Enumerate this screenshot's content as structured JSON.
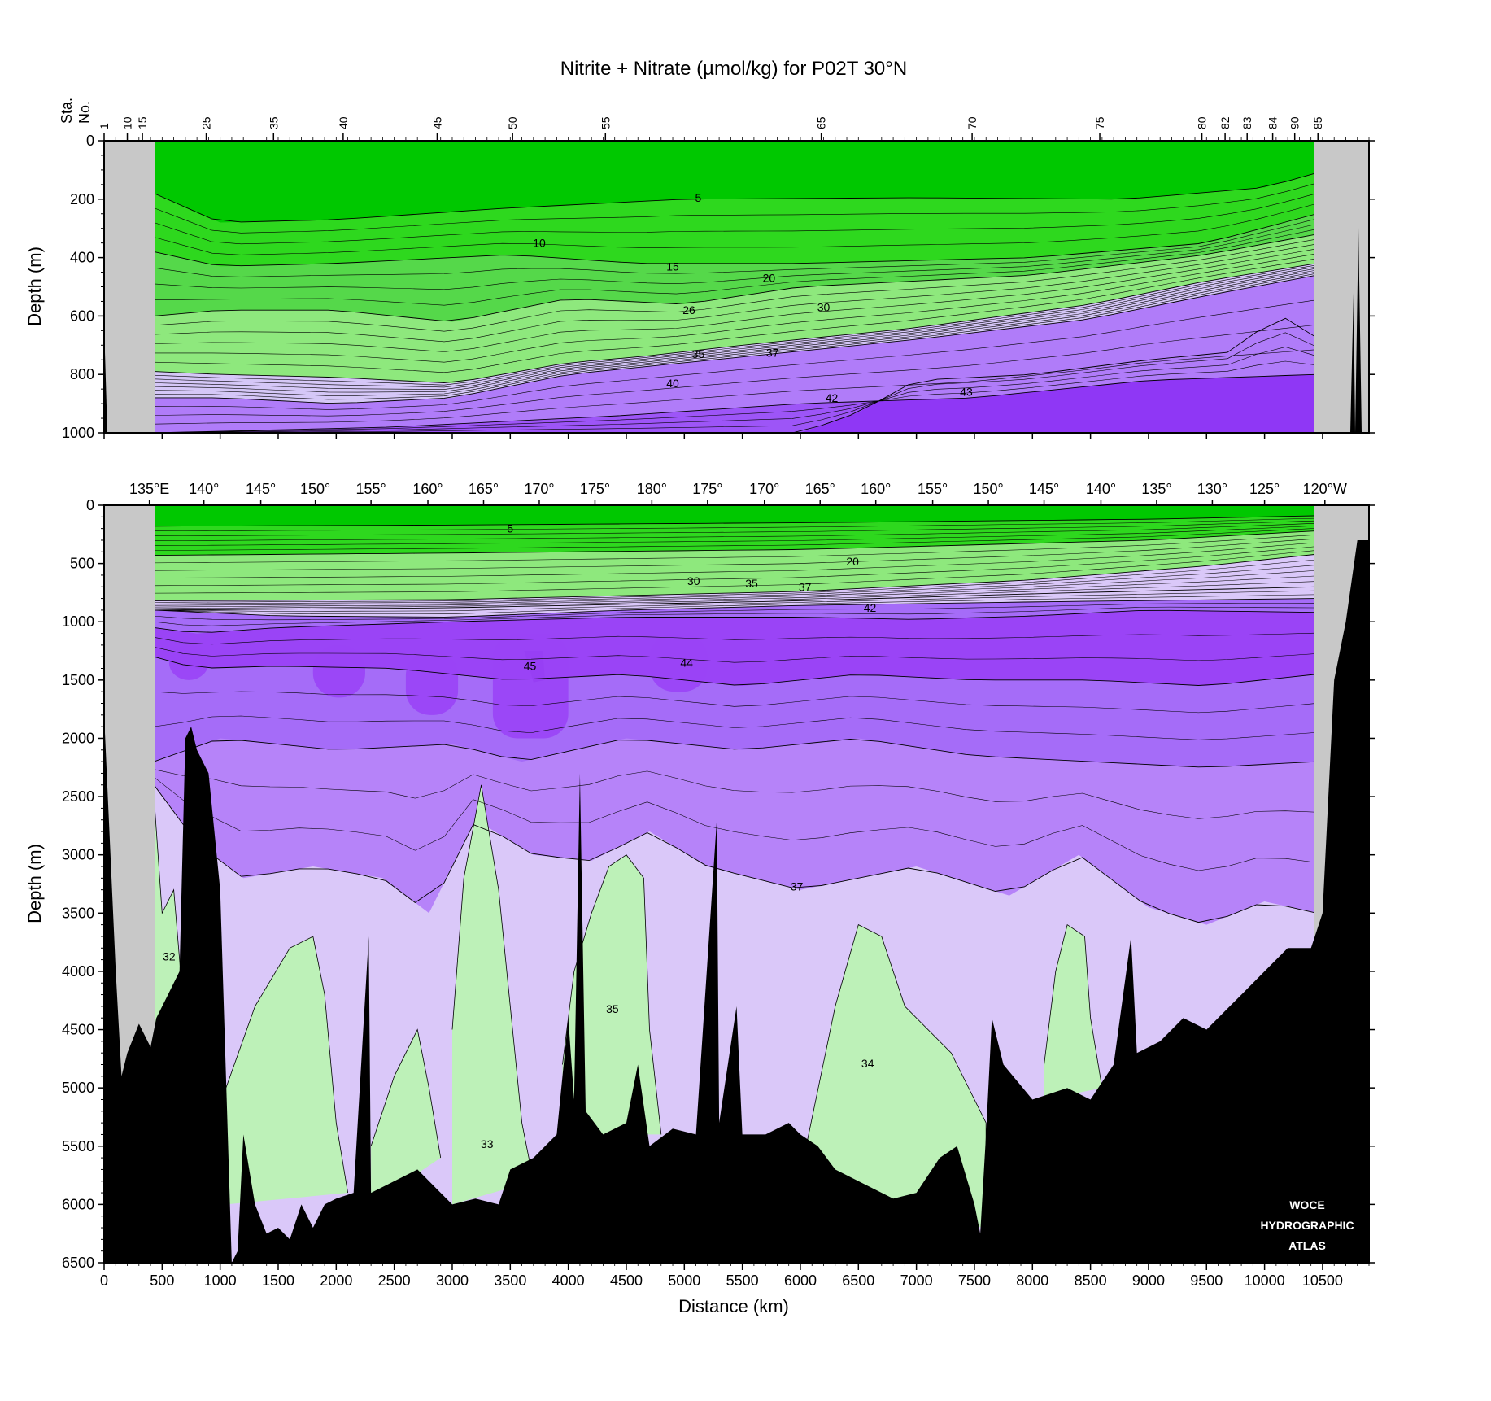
{
  "chart_data": [
    {
      "type": "contour",
      "panel": "upper",
      "title": "Nitrite + Nitrate (µmol/kg) for P02T 30°N",
      "ylabel": "Depth (m)",
      "station_axis_label": [
        "Sta.",
        "No."
      ],
      "ylim": [
        0,
        1000
      ],
      "y_inverted": true,
      "xlim": [
        0,
        10900
      ],
      "yticks": [
        0,
        200,
        400,
        600,
        800,
        1000
      ],
      "ytick_labels": [
        "0",
        "200",
        "400",
        "600",
        "800",
        "1000"
      ],
      "stations": [
        {
          "label": "1",
          "x": 0
        },
        {
          "label": "10",
          "x": 200
        },
        {
          "label": "15",
          "x": 330
        },
        {
          "label": "25",
          "x": 880
        },
        {
          "label": "35",
          "x": 1460
        },
        {
          "label": "40",
          "x": 2060
        },
        {
          "label": "45",
          "x": 2870
        },
        {
          "label": "50",
          "x": 3520
        },
        {
          "label": "55",
          "x": 4320
        },
        {
          "label": "65",
          "x": 6180
        },
        {
          "label": "70",
          "x": 7480
        },
        {
          "label": "75",
          "x": 8580
        },
        {
          "label": "80",
          "x": 9460
        },
        {
          "label": "82",
          "x": 9660
        },
        {
          "label": "83",
          "x": 9850
        },
        {
          "label": "84",
          "x": 10070
        },
        {
          "label": "90",
          "x": 10260
        },
        {
          "label": "85",
          "x": 10460
        }
      ],
      "contour_labels": [
        {
          "text": "5",
          "x": 5120,
          "depth": 195
        },
        {
          "text": "10",
          "x": 3750,
          "depth": 350
        },
        {
          "text": "15",
          "x": 4900,
          "depth": 430
        },
        {
          "text": "20",
          "x": 5730,
          "depth": 470
        },
        {
          "text": "26",
          "x": 5040,
          "depth": 580
        },
        {
          "text": "30",
          "x": 6200,
          "depth": 570
        },
        {
          "text": "35",
          "x": 5120,
          "depth": 730
        },
        {
          "text": "37",
          "x": 5760,
          "depth": 725
        },
        {
          "text": "40",
          "x": 4900,
          "depth": 830
        },
        {
          "text": "42",
          "x": 6270,
          "depth": 880
        },
        {
          "text": "43",
          "x": 7430,
          "depth": 860
        }
      ],
      "bands": [
        {
          "min": 0,
          "max": 5,
          "boundary": [
            [
              430,
              180
            ],
            [
              1000,
              280
            ],
            [
              2000,
              270
            ],
            [
              3500,
              230
            ],
            [
              5000,
              200
            ],
            [
              7000,
              195
            ],
            [
              8800,
              200
            ],
            [
              10000,
              160
            ],
            [
              10450,
              110
            ]
          ]
        },
        {
          "min": 5,
          "max": 15,
          "boundary": [
            [
              430,
              380
            ],
            [
              1000,
              430
            ],
            [
              2000,
              420
            ],
            [
              3500,
              390
            ],
            [
              4600,
              420
            ],
            [
              6000,
              420
            ],
            [
              8000,
              400
            ],
            [
              9500,
              350
            ],
            [
              10450,
              250
            ]
          ]
        },
        {
          "min": 15,
          "max": 26,
          "boundary": [
            [
              430,
              600
            ],
            [
              1000,
              580
            ],
            [
              2000,
              580
            ],
            [
              3000,
              620
            ],
            [
              4000,
              540
            ],
            [
              5000,
              560
            ],
            [
              6000,
              500
            ],
            [
              8000,
              460
            ],
            [
              9500,
              390
            ],
            [
              10450,
              320
            ]
          ]
        },
        {
          "min": 26,
          "max": 35,
          "boundary": [
            [
              430,
              790
            ],
            [
              1000,
              800
            ],
            [
              2000,
              810
            ],
            [
              3000,
              830
            ],
            [
              4000,
              760
            ],
            [
              4600,
              740
            ],
            [
              5500,
              700
            ],
            [
              7000,
              640
            ],
            [
              8500,
              560
            ],
            [
              9500,
              480
            ],
            [
              10450,
              420
            ]
          ]
        },
        {
          "min": 35,
          "max": 37,
          "boundary": [
            [
              430,
              880
            ],
            [
              1000,
              880
            ],
            [
              2000,
              900
            ],
            [
              3000,
              880
            ],
            [
              4000,
              800
            ],
            [
              5500,
              740
            ],
            [
              7000,
              680
            ],
            [
              8500,
              610
            ],
            [
              9500,
              530
            ],
            [
              10450,
              460
            ]
          ]
        },
        {
          "min": 37,
          "max": 42,
          "boundary": [
            [
              430,
              1000
            ],
            [
              2500,
              980
            ],
            [
              4500,
              940
            ],
            [
              6000,
              900
            ],
            [
              7500,
              880
            ],
            [
              9000,
              820
            ],
            [
              10450,
              800
            ]
          ]
        },
        {
          "min": 42,
          "max": 43,
          "boundary": [
            [
              430,
              1000
            ],
            [
              6000,
              1000
            ],
            [
              6500,
              930
            ],
            [
              7000,
              820
            ],
            [
              8000,
              800
            ],
            [
              9000,
              750
            ],
            [
              9800,
              720
            ],
            [
              10000,
              620
            ],
            [
              10300,
              600
            ],
            [
              10450,
              680
            ]
          ]
        }
      ],
      "colorscale": [
        {
          "range": "<5",
          "color": "#00c800"
        },
        {
          "range": "5-15",
          "color": "#2ed81e"
        },
        {
          "range": "15-26",
          "color": "#55d84a"
        },
        {
          "range": "26-35",
          "color": "#8ee87d"
        },
        {
          "range": "35-37",
          "color": "#d5c7f7"
        },
        {
          "range": "37-42",
          "color": "#b07cf9"
        },
        {
          "range": "42-43",
          "color": "#9d55f7"
        },
        {
          "range": ">43",
          "color": "#8f37f5"
        }
      ]
    },
    {
      "type": "contour",
      "panel": "lower",
      "xlabel": "Distance (km)",
      "ylabel": "Depth (m)",
      "xlim": [
        0,
        10900
      ],
      "ylim": [
        0,
        6500
      ],
      "y_inverted": true,
      "xticks": [
        0,
        500,
        1000,
        1500,
        2000,
        2500,
        3000,
        3500,
        4000,
        4500,
        5000,
        5500,
        6000,
        6500,
        7000,
        7500,
        8000,
        8500,
        9000,
        9500,
        10000,
        10500
      ],
      "xtick_labels": [
        "0",
        "500",
        "1000",
        "1500",
        "2000",
        "2500",
        "3000",
        "3500",
        "4000",
        "4500",
        "5000",
        "5500",
        "6000",
        "6500",
        "7000",
        "7500",
        "8000",
        "8500",
        "9000",
        "9500",
        "10000",
        "10500"
      ],
      "yticks": [
        0,
        500,
        1000,
        1500,
        2000,
        2500,
        3000,
        3500,
        4000,
        4500,
        5000,
        5500,
        6000,
        6500
      ],
      "ytick_labels": [
        "0",
        "500",
        "1000",
        "1500",
        "2000",
        "2500",
        "3000",
        "3500",
        "4000",
        "4500",
        "5000",
        "5500",
        "6000",
        "6500"
      ],
      "longitudes": [
        {
          "label": "135°E",
          "x": 390
        },
        {
          "label": "140°",
          "x": 860
        },
        {
          "label": "145°",
          "x": 1350
        },
        {
          "label": "150°",
          "x": 1820
        },
        {
          "label": "155°",
          "x": 2300
        },
        {
          "label": "160°",
          "x": 2790
        },
        {
          "label": "165°",
          "x": 3270
        },
        {
          "label": "170°",
          "x": 3750
        },
        {
          "label": "175°",
          "x": 4230
        },
        {
          "label": "180°",
          "x": 4720
        },
        {
          "label": "175°",
          "x": 5200
        },
        {
          "label": "170°",
          "x": 5690
        },
        {
          "label": "165°",
          "x": 6170
        },
        {
          "label": "160°",
          "x": 6650
        },
        {
          "label": "155°",
          "x": 7140
        },
        {
          "label": "150°",
          "x": 7620
        },
        {
          "label": "145°",
          "x": 8100
        },
        {
          "label": "140°",
          "x": 8590
        },
        {
          "label": "135°",
          "x": 9070
        },
        {
          "label": "130°",
          "x": 9550
        },
        {
          "label": "125°",
          "x": 10000
        },
        {
          "label": "120°W",
          "x": 10520
        }
      ],
      "contour_labels": [
        {
          "text": "5",
          "x": 3500,
          "depth": 200
        },
        {
          "text": "20",
          "x": 6450,
          "depth": 480
        },
        {
          "text": "30",
          "x": 5080,
          "depth": 650
        },
        {
          "text": "35",
          "x": 5580,
          "depth": 670
        },
        {
          "text": "37",
          "x": 6040,
          "depth": 700
        },
        {
          "text": "42",
          "x": 6600,
          "depth": 880
        },
        {
          "text": "45",
          "x": 3670,
          "depth": 1380
        },
        {
          "text": "44",
          "x": 5020,
          "depth": 1350
        },
        {
          "text": "37",
          "x": 5970,
          "depth": 3270
        },
        {
          "text": "32",
          "x": 560,
          "depth": 3870
        },
        {
          "text": "35",
          "x": 4380,
          "depth": 4320
        },
        {
          "text": "34",
          "x": 6580,
          "depth": 4790
        },
        {
          "text": "33",
          "x": 3300,
          "depth": 5480
        }
      ],
      "colorscale": [
        {
          "range": "<5",
          "color": "#00c800"
        },
        {
          "range": "5-26",
          "color": "#2ed81e"
        },
        {
          "range": "26-35",
          "color": "#8ee87d"
        },
        {
          "range": "34-35 (deep)",
          "color": "#bdf1b8"
        },
        {
          "range": "35-37",
          "color": "#dac8f9"
        },
        {
          "range": "37-40",
          "color": "#b683f9"
        },
        {
          "range": "40-42",
          "color": "#a56cf8"
        },
        {
          "range": "42-44",
          "color": "#9a44f6"
        },
        {
          "range": ">45",
          "color": "#7d1de0"
        }
      ],
      "bottom_depth": [
        [
          0,
          1800
        ],
        [
          100,
          4000
        ],
        [
          150,
          4900
        ],
        [
          200,
          4700
        ],
        [
          300,
          4450
        ],
        [
          400,
          4650
        ],
        [
          450,
          4400
        ],
        [
          550,
          4200
        ],
        [
          650,
          4000
        ],
        [
          700,
          2000
        ],
        [
          750,
          1900
        ],
        [
          800,
          2100
        ],
        [
          900,
          2300
        ],
        [
          1000,
          3300
        ],
        [
          1050,
          4900
        ],
        [
          1100,
          6500
        ],
        [
          1150,
          6400
        ],
        [
          1200,
          5400
        ],
        [
          1300,
          6000
        ],
        [
          1400,
          6250
        ],
        [
          1500,
          6200
        ],
        [
          1600,
          6300
        ],
        [
          1700,
          6000
        ],
        [
          1800,
          6200
        ],
        [
          1900,
          6000
        ],
        [
          2000,
          5950
        ],
        [
          2150,
          5900
        ],
        [
          2280,
          3700
        ],
        [
          2300,
          5900
        ],
        [
          2500,
          5800
        ],
        [
          2700,
          5700
        ],
        [
          2900,
          5900
        ],
        [
          3000,
          6000
        ],
        [
          3200,
          5950
        ],
        [
          3400,
          6000
        ],
        [
          3500,
          5700
        ],
        [
          3700,
          5600
        ],
        [
          3900,
          5400
        ],
        [
          4000,
          4400
        ],
        [
          4050,
          5100
        ],
        [
          4100,
          2300
        ],
        [
          4150,
          5200
        ],
        [
          4300,
          5400
        ],
        [
          4500,
          5300
        ],
        [
          4600,
          4800
        ],
        [
          4700,
          5500
        ],
        [
          4900,
          5350
        ],
        [
          5100,
          5400
        ],
        [
          5280,
          2700
        ],
        [
          5300,
          5300
        ],
        [
          5450,
          4300
        ],
        [
          5500,
          5400
        ],
        [
          5700,
          5400
        ],
        [
          5900,
          5300
        ],
        [
          6000,
          5400
        ],
        [
          6150,
          5500
        ],
        [
          6300,
          5700
        ],
        [
          6500,
          5800
        ],
        [
          6800,
          5950
        ],
        [
          7000,
          5900
        ],
        [
          7200,
          5600
        ],
        [
          7350,
          5500
        ],
        [
          7500,
          6000
        ],
        [
          7550,
          6250
        ],
        [
          7600,
          5400
        ],
        [
          7650,
          4400
        ],
        [
          7750,
          4800
        ],
        [
          8000,
          5100
        ],
        [
          8300,
          5000
        ],
        [
          8500,
          5100
        ],
        [
          8700,
          4800
        ],
        [
          8850,
          3700
        ],
        [
          8900,
          4700
        ],
        [
          9100,
          4600
        ],
        [
          9300,
          4400
        ],
        [
          9500,
          4500
        ],
        [
          9700,
          4300
        ],
        [
          9800,
          4200
        ],
        [
          10000,
          4000
        ],
        [
          10200,
          3800
        ],
        [
          10400,
          3800
        ],
        [
          10500,
          3500
        ],
        [
          10600,
          1500
        ],
        [
          10700,
          1000
        ],
        [
          10800,
          300
        ],
        [
          10900,
          300
        ]
      ],
      "watermark": [
        "WOCE",
        "HYDROGRAPHIC",
        "ATLAS"
      ]
    }
  ]
}
